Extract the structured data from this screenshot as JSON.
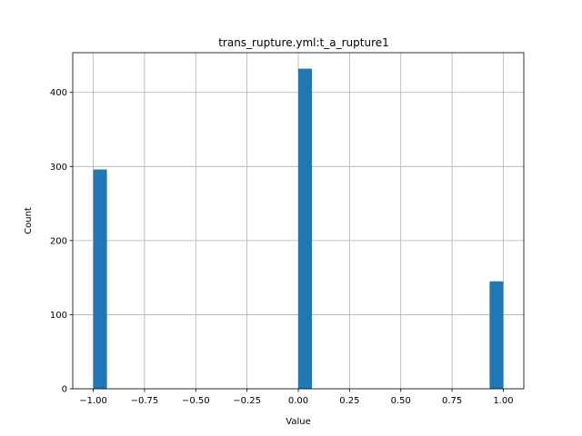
{
  "chart_data": {
    "type": "bar",
    "title": "trans_rupture.yml:t_a_rupture1",
    "xlabel": "Value",
    "ylabel": "Count",
    "xlim": [
      -1.1,
      1.1
    ],
    "ylim": [
      0,
      453.6
    ],
    "xticks": [
      -1.0,
      -0.75,
      -0.5,
      -0.25,
      0.0,
      0.25,
      0.5,
      0.75,
      1.0
    ],
    "xtick_labels": [
      "−1.00",
      "−0.75",
      "−0.50",
      "−0.25",
      "0.00",
      "0.25",
      "0.50",
      "0.75",
      "1.00"
    ],
    "yticks": [
      0,
      100,
      200,
      300,
      400
    ],
    "ytick_labels": [
      "0",
      "100",
      "200",
      "300",
      "400"
    ],
    "grid": true,
    "bar_color": "#1f77b4",
    "bin_width": 0.0667,
    "bins": [
      {
        "x_start": -1.0,
        "x_end": -0.9333,
        "count": 296
      },
      {
        "x_start": 0.0,
        "x_end": 0.0667,
        "count": 432
      },
      {
        "x_start": 0.9333,
        "x_end": 1.0,
        "count": 145
      }
    ]
  }
}
